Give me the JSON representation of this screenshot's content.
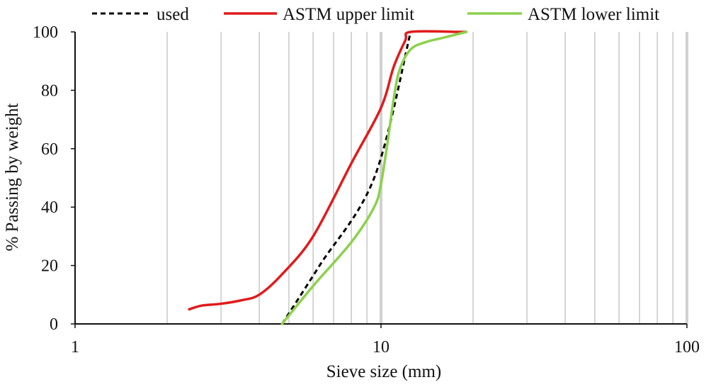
{
  "chart_data": {
    "type": "line",
    "xscale": "log",
    "xlim": [
      1,
      100
    ],
    "ylim": [
      0,
      100
    ],
    "xlabel": "Sieve size (mm)",
    "ylabel": "% Passing by weight",
    "xticks": [
      "1",
      "10",
      "100"
    ],
    "yticks": [
      "0",
      "20",
      "40",
      "60",
      "80",
      "100"
    ],
    "grid": "vertical minor and major log gridlines",
    "legend_position": "top",
    "series": [
      {
        "name": "used",
        "color": "#000000",
        "style": "dashed",
        "x": [
          4.75,
          6.3,
          9.5,
          12.5
        ],
        "y": [
          0,
          20,
          50,
          100
        ]
      },
      {
        "name": "ASTM upper limit",
        "color": "#e01b1b",
        "style": "solid",
        "x": [
          2.36,
          2.6,
          3,
          3.5,
          4,
          4.75,
          6,
          8,
          10,
          11,
          12,
          12.5,
          18,
          19
        ],
        "y": [
          5,
          6.3,
          6.9,
          8.1,
          10,
          17,
          30,
          55,
          74,
          88,
          97,
          100,
          100,
          100
        ]
      },
      {
        "name": "ASTM lower limit",
        "color": "#8cd14c",
        "style": "solid",
        "x": [
          4.75,
          6,
          8,
          9.5,
          10,
          10.5,
          11,
          11.5,
          12.5,
          14,
          16,
          19
        ],
        "y": [
          0,
          13,
          28,
          40,
          48,
          62,
          77,
          87,
          94,
          96.5,
          98,
          100
        ]
      }
    ]
  }
}
